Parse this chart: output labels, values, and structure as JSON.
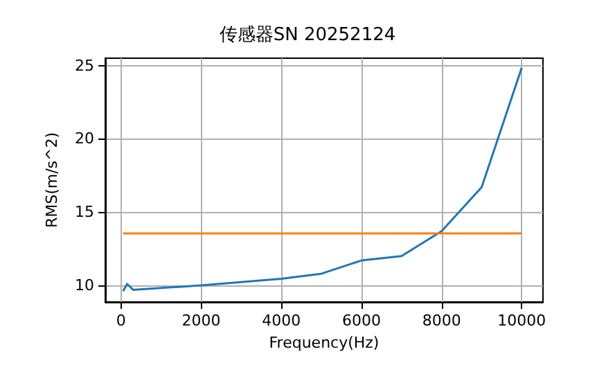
{
  "chart_data": {
    "type": "line",
    "title": "传感器SN 20252124",
    "xlabel": "Frequency(Hz)",
    "ylabel": "RMS(m/s^2)",
    "xlim": [
      -395,
      10530
    ],
    "xticks": [
      0,
      2000,
      4000,
      6000,
      8000,
      10000
    ],
    "ylim": [
      8.87,
      25.5
    ],
    "yticks": [
      10,
      15,
      20,
      25
    ],
    "grid": true,
    "series": [
      {
        "color": "#1f77b4",
        "x": [
          50,
          150,
          300,
          2000,
          4000,
          5000,
          6000,
          7000,
          8000,
          9000,
          10000
        ],
        "values": [
          9.6,
          10.1,
          9.7,
          10.0,
          10.45,
          10.8,
          11.7,
          12.0,
          13.7,
          16.7,
          24.85
        ]
      },
      {
        "color": "#ff7f0e",
        "x": [
          50,
          10000
        ],
        "values": [
          13.55,
          13.55
        ]
      }
    ]
  }
}
